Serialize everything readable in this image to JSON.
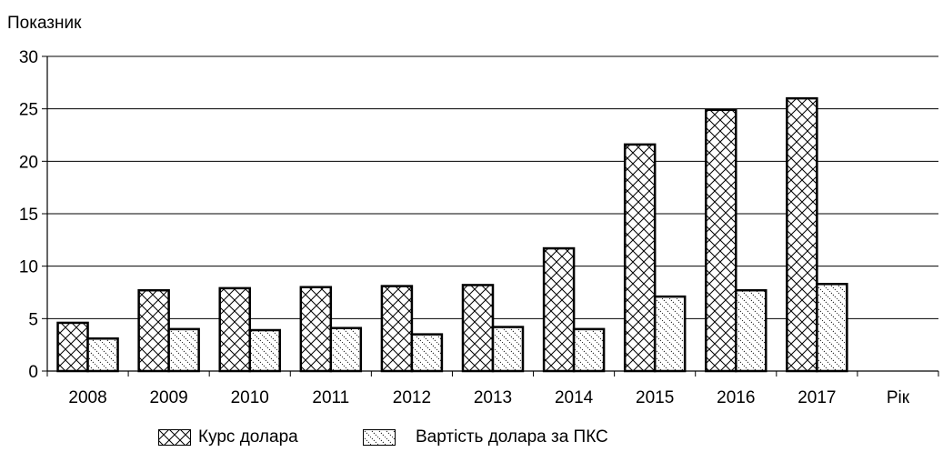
{
  "chart_data": {
    "type": "bar",
    "ylabel": "Показник",
    "xlabel": "Рік",
    "categories": [
      "2008",
      "2009",
      "2010",
      "2011",
      "2012",
      "2013",
      "2014",
      "2015",
      "2016",
      "2017"
    ],
    "series": [
      {
        "name": "Курс долара",
        "values": [
          4.6,
          7.7,
          7.9,
          8.0,
          8.1,
          8.2,
          11.7,
          21.6,
          24.9,
          26.0
        ],
        "pattern": "crosshatch"
      },
      {
        "name": "Вартість долара за ПКС",
        "values": [
          3.1,
          4.0,
          3.9,
          4.1,
          3.5,
          4.2,
          4.0,
          7.1,
          7.7,
          8.3
        ],
        "pattern": "diagonal-dots"
      }
    ],
    "ylim": [
      0,
      30
    ],
    "yticks": [
      0,
      5,
      10,
      15,
      20,
      25,
      30
    ],
    "grid": true,
    "legend_position": "bottom"
  },
  "colors": {
    "ink": "#000000",
    "background": "#ffffff",
    "grid": "#000000"
  }
}
